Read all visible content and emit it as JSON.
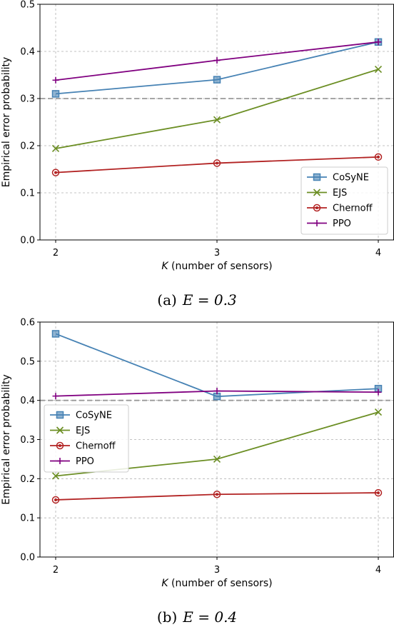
{
  "colors": {
    "CoSyNE": "#4682b4",
    "EJS": "#6b8e23",
    "Chernoff": "#b22222",
    "PPO": "#800080",
    "threshold": "#999999",
    "grid": "#b0b0b0"
  },
  "chart_data": [
    {
      "type": "line",
      "caption_prefix": "(a)",
      "caption_math": "E = 0.3",
      "xlabel_var": "K",
      "xlabel_rest": " (number of sensors)",
      "ylabel": "Empirical error probability",
      "x": [
        2,
        3,
        4
      ],
      "xticks": [
        "2",
        "3",
        "4"
      ],
      "ylim": [
        0.0,
        0.5
      ],
      "yticks": [
        "0.0",
        "0.1",
        "0.2",
        "0.3",
        "0.4",
        "0.5"
      ],
      "grid": true,
      "threshold": 0.3,
      "legend_position": "lower-right",
      "series": [
        {
          "name": "CoSyNE",
          "marker": "square",
          "values": [
            0.31,
            0.34,
            0.42
          ]
        },
        {
          "name": "EJS",
          "marker": "x",
          "values": [
            0.194,
            0.255,
            0.362
          ]
        },
        {
          "name": "Chernoff",
          "marker": "circle",
          "values": [
            0.143,
            0.163,
            0.176
          ]
        },
        {
          "name": "PPO",
          "marker": "plus",
          "values": [
            0.339,
            0.381,
            0.42
          ]
        }
      ]
    },
    {
      "type": "line",
      "caption_prefix": "(b)",
      "caption_math": "E = 0.4",
      "xlabel_var": "K",
      "xlabel_rest": " (number of sensors)",
      "ylabel": "Empirical error probability",
      "x": [
        2,
        3,
        4
      ],
      "xticks": [
        "2",
        "3",
        "4"
      ],
      "ylim": [
        0.0,
        0.6
      ],
      "yticks": [
        "0.0",
        "0.1",
        "0.2",
        "0.3",
        "0.4",
        "0.5",
        "0.6"
      ],
      "grid": true,
      "threshold": 0.4,
      "legend_position": "upper-left",
      "series": [
        {
          "name": "CoSyNE",
          "marker": "square",
          "values": [
            0.57,
            0.41,
            0.43
          ]
        },
        {
          "name": "EJS",
          "marker": "x",
          "values": [
            0.207,
            0.25,
            0.37
          ]
        },
        {
          "name": "Chernoff",
          "marker": "circle",
          "values": [
            0.146,
            0.16,
            0.164
          ]
        },
        {
          "name": "PPO",
          "marker": "plus",
          "values": [
            0.411,
            0.424,
            0.421
          ]
        }
      ]
    }
  ]
}
